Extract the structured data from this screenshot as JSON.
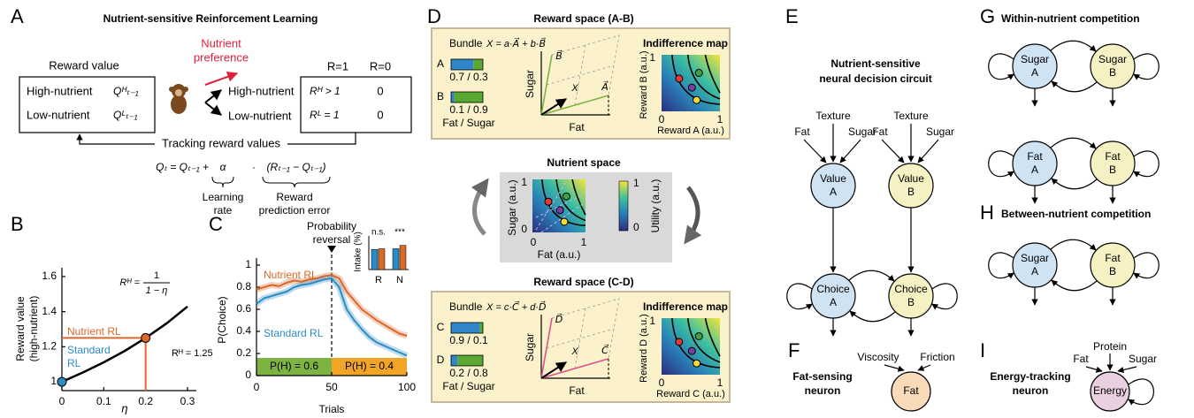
{
  "panel_a": {
    "letter": "A",
    "title": "Nutrient-sensitive Reinforcement Learning",
    "reward_value": "Reward value",
    "options": [
      {
        "label": "High-nutrient",
        "value": "Qᴴₜ₋₁"
      },
      {
        "label": "Low-nutrient",
        "value": "Qᴸₜ₋₁"
      }
    ],
    "preference": [
      "Nutrient",
      "preference"
    ],
    "choices": [
      "High-nutrient",
      "Low-nutrient"
    ],
    "outcome_headers": [
      "R=1",
      "R=0"
    ],
    "outcomes": [
      [
        "Rᴴ > 1",
        "0"
      ],
      [
        "Rᴸ = 1",
        "0"
      ]
    ],
    "tracking": "Tracking reward values",
    "equation": [
      "Qₜ = Qₜ₋₁ +",
      "α",
      "·",
      "(Rₜ₋₁ − Qₜ₋₁)"
    ],
    "terms": [
      [
        "Learning",
        "rate"
      ],
      [
        "Reward",
        "prediction error"
      ]
    ]
  },
  "panel_b": {
    "letter": "B",
    "type": "line",
    "x": [
      0,
      0.05,
      0.1,
      0.15,
      0.2,
      0.25,
      0.3
    ],
    "values": [
      1,
      1.053,
      1.111,
      1.176,
      1.25,
      1.333,
      1.429
    ],
    "color": "#000000",
    "xlim": [
      0,
      0.3
    ],
    "ylim": [
      0.95,
      1.65
    ],
    "xticks": [
      0,
      0.1,
      0.2,
      0.3
    ],
    "yticks": [
      1,
      1.2,
      1.4,
      1.6
    ],
    "xlabel": "η",
    "ylabel": [
      "Reward value",
      "(high-nutrient)"
    ],
    "formula": [
      "Rᴴ =",
      "1",
      "1 − η"
    ],
    "points": [
      {
        "label": [
          "Standard",
          "RL"
        ],
        "x": 0,
        "y": 1,
        "color": "#2b8cc4"
      },
      {
        "label": [
          "Nutrient RL"
        ],
        "x": 0.2,
        "y": 1.25,
        "color": "#d9682b"
      }
    ],
    "annotation": "Rᴴ = 1.25"
  },
  "panel_c": {
    "letter": "C",
    "type": "line",
    "x": [
      0,
      5,
      10,
      15,
      20,
      25,
      30,
      35,
      40,
      45,
      50,
      55,
      60,
      65,
      70,
      75,
      80,
      85,
      90,
      95,
      100
    ],
    "series": [
      {
        "name": "Nutrient RL",
        "color": "#d9682b",
        "values": [
          0.78,
          0.8,
          0.82,
          0.81,
          0.84,
          0.86,
          0.85,
          0.87,
          0.88,
          0.9,
          0.91,
          0.88,
          0.76,
          0.68,
          0.6,
          0.55,
          0.5,
          0.46,
          0.42,
          0.38,
          0.36
        ]
      },
      {
        "name": "Standard RL",
        "color": "#2b8cc4",
        "values": [
          0.65,
          0.7,
          0.72,
          0.74,
          0.76,
          0.8,
          0.82,
          0.83,
          0.85,
          0.87,
          0.88,
          0.8,
          0.6,
          0.5,
          0.42,
          0.35,
          0.3,
          0.27,
          0.24,
          0.21,
          0.18
        ]
      }
    ],
    "xlim": [
      0,
      100
    ],
    "ylim": [
      0,
      1
    ],
    "xticks": [
      0,
      50,
      100
    ],
    "yticks": [
      0,
      0.2,
      0.4,
      0.6,
      0.8,
      1
    ],
    "xlabel": "Trials",
    "ylabel": "P(Choice)",
    "reversal": {
      "x": 50,
      "label": [
        "Probability",
        "reversal"
      ]
    },
    "blocks": [
      {
        "label": "P(H) = 0.6",
        "start": 0,
        "end": 50,
        "color": "#7cb342"
      },
      {
        "label": "P(H) = 0.4",
        "start": 50,
        "end": 100,
        "color": "#f0a526"
      }
    ],
    "inset": {
      "type": "bar",
      "ylabel": "Intake (%)",
      "categories": [
        "R",
        "N"
      ],
      "ylim": [
        0,
        100
      ],
      "series": [
        {
          "color": "#2b8cc4",
          "values": [
            60,
            62
          ]
        },
        {
          "color": "#d9682b",
          "values": [
            62,
            72
          ]
        }
      ],
      "significance": [
        "n.s.",
        "***"
      ]
    }
  },
  "panel_d": {
    "letter": "D",
    "reward_spaces": [
      {
        "title": "Reward space (A-B)",
        "bundle": "Bundle",
        "formula": "X = a·A⃗ + b·B⃗",
        "bundles": [
          {
            "name": "A",
            "values": [
              0.7,
              0.3
            ],
            "value_label": "0.7 / 0.3"
          },
          {
            "name": "B",
            "values": [
              0.1,
              0.9
            ],
            "value_label": "0.1 / 0.9"
          }
        ],
        "bundle_axis": "Fat / Sugar",
        "vectors": {
          "y_label": "Sugar",
          "x_label": "Fat",
          "v1": "B⃗",
          "v2": "A⃗",
          "x": "X"
        },
        "map": {
          "title": "Indifference map",
          "ticks": [
            "1",
            "0",
            "1"
          ],
          "ylabel": "Reward B (a.u.)",
          "xlabel": "Reward A (a.u.)"
        }
      },
      {
        "title": "Reward space (C-D)",
        "bundle": "Bundle",
        "formula": "X = c·C⃗ + d·D⃗",
        "bundles": [
          {
            "name": "C",
            "values": [
              0.9,
              0.1
            ],
            "value_label": "0.9 / 0.1"
          },
          {
            "name": "D",
            "values": [
              0.2,
              0.8
            ],
            "value_label": "0.2 / 0.8"
          }
        ],
        "bundle_axis": "Fat / Sugar",
        "vectors": {
          "y_label": "Sugar",
          "x_label": "Fat",
          "v1": "D⃗",
          "v2": "C⃗",
          "x": "X"
        },
        "map": {
          "title": "Indifference map",
          "ticks": [
            "1",
            "0",
            "1"
          ],
          "ylabel": "Reward D (a.u.)",
          "xlabel": "Reward C (a.u.)"
        }
      }
    ],
    "nutrient_space": {
      "title": "Nutrient space",
      "ticks": [
        "1",
        "0",
        "0",
        "1"
      ],
      "ylabel": "Sugar (a.u.)",
      "xlabel": "Fat (a.u.)",
      "colorbar": {
        "ticks": [
          "1",
          "0"
        ],
        "label": "Utility (a.u.)"
      }
    }
  },
  "panel_e": {
    "letter": "E",
    "title": [
      "Nutrient-sensitive",
      "neural decision circuit"
    ],
    "inputs": [
      {
        "top": "Texture",
        "left": "Fat",
        "right": "Sugar"
      },
      {
        "top": "Texture",
        "left": "Fat",
        "right": "Sugar"
      }
    ],
    "values": [
      [
        "Value",
        "A"
      ],
      [
        "Value",
        "B"
      ]
    ],
    "choices": [
      [
        "Choice",
        "A"
      ],
      [
        "Choice",
        "B"
      ]
    ]
  },
  "panel_f": {
    "letter": "F",
    "title": [
      "Fat-sensing",
      "neuron"
    ],
    "inputs": [
      "Viscosity",
      "Friction"
    ],
    "node": "Fat"
  },
  "panel_g": {
    "letter": "G",
    "title": "Within-nutrient competition",
    "pairs": [
      [
        [
          "Sugar",
          "A"
        ],
        [
          "Sugar",
          "B"
        ]
      ],
      [
        [
          "Fat",
          "A"
        ],
        [
          "Fat",
          "B"
        ]
      ]
    ]
  },
  "panel_h": {
    "letter": "H",
    "title": "Between-nutrient competition",
    "pair": [
      [
        "Sugar",
        "A"
      ],
      [
        "Fat",
        "B"
      ]
    ]
  },
  "panel_i": {
    "letter": "I",
    "title": [
      "Energy-tracking",
      "neuron"
    ],
    "inputs": [
      "Fat",
      "Protein",
      "Sugar"
    ],
    "node": "Energy"
  }
}
